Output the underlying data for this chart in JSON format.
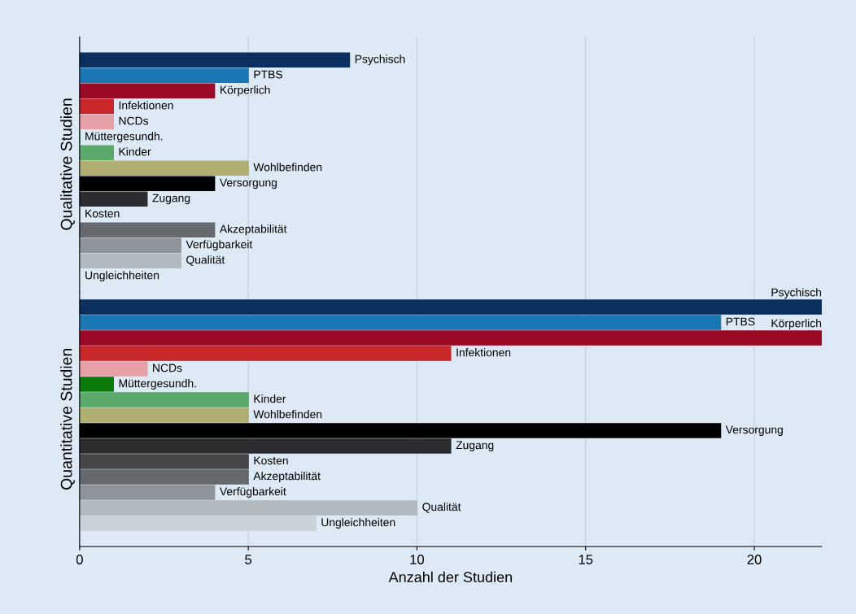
{
  "chart_data": [
    {
      "type": "bar",
      "orientation": "horizontal",
      "ylabel": "Qualitative Studien",
      "categories": [
        "Psychisch",
        "PTBS",
        "Körperlich",
        "Infektionen",
        "NCDs",
        "Müttergesundh.",
        "Kinder",
        "Wohlbefinden",
        "Versorgung",
        "Zugang",
        "Kosten",
        "Akzeptabilität",
        "Verfügbarkeit",
        "Qualität",
        "Ungleichheiten"
      ],
      "values": [
        8,
        5,
        4,
        1,
        1,
        0,
        1,
        5,
        4,
        2,
        0,
        4,
        3,
        3,
        0
      ],
      "colors": [
        "#0b2f5e",
        "#1a77b4",
        "#9b0a26",
        "#c8282a",
        "#e6a0a6",
        "#0a7a0a",
        "#5aa86a",
        "#b0ae70",
        "#000000",
        "#2a2c2e",
        "#444648",
        "#666a6e",
        "#8e9499",
        "#b2b9bf",
        "#c9d1d9"
      ],
      "xlim": [
        0,
        22
      ],
      "xticks": [
        0,
        5,
        10,
        15,
        20
      ],
      "grid": "x",
      "tick_labels": false
    },
    {
      "type": "bar",
      "orientation": "horizontal",
      "ylabel": "Quantitative Studien",
      "xlabel": "Anzahl der Studien",
      "categories": [
        "Psychisch",
        "PTBS",
        "Körperlich",
        "Infektionen",
        "NCDs",
        "Müttergesundh.",
        "Kinder",
        "Wohlbefinden",
        "Versorgung",
        "Zugang",
        "Kosten",
        "Akzeptabilität",
        "Verfügbarkeit",
        "Qualität",
        "Ungleichheiten"
      ],
      "values": [
        22,
        19,
        22,
        11,
        2,
        1,
        5,
        5,
        19,
        11,
        5,
        5,
        4,
        10,
        7
      ],
      "colors": [
        "#0b2f5e",
        "#1a77b4",
        "#9b0a26",
        "#c8282a",
        "#e6a0a6",
        "#0a7a0a",
        "#5aa86a",
        "#b0ae70",
        "#000000",
        "#2a2c2e",
        "#444648",
        "#666a6e",
        "#8e9499",
        "#b2b9bf",
        "#c9d1d9"
      ],
      "xlim": [
        0,
        22
      ],
      "xticks": [
        0,
        5,
        10,
        15,
        20
      ],
      "grid": "x",
      "tick_labels": "x"
    }
  ]
}
